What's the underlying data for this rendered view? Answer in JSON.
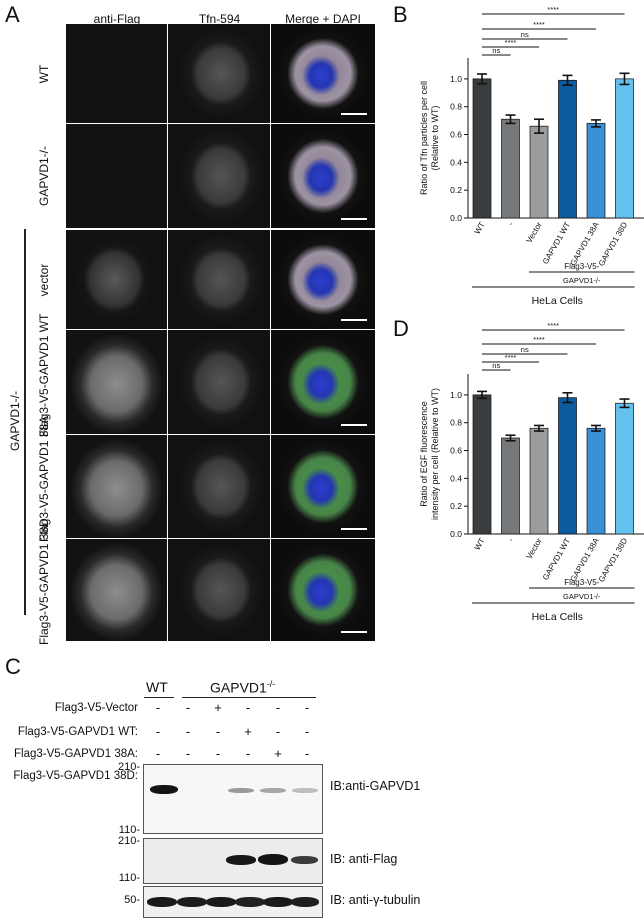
{
  "panel_A": {
    "letter": "A",
    "col_headers": [
      "anti-Flag",
      "Tfn-594",
      "Merge + DAPI"
    ],
    "row_labels": [
      "WT",
      "GAPVD1-/-",
      "vector",
      "Flag3-V5-GAPVD1 WT",
      "Flag3-V5-GAPVD1 38A",
      "Flag3-V5-GAPVD1 38D"
    ],
    "group_label": "GAPVD1-/-"
  },
  "panel_C": {
    "letter": "C",
    "header_wt": "WT",
    "header_ko": "GAPVD1-/-",
    "rows": [
      {
        "label": "Flag3-V5-Vector",
        "signs": [
          "-",
          "-",
          "+",
          "-",
          "-",
          "-"
        ]
      },
      {
        "label": "Flag3-V5-GAPVD1 WT:",
        "signs": [
          "-",
          "-",
          "-",
          "+",
          "-",
          "-"
        ]
      },
      {
        "label": "Flag3-V5-GAPVD1 38A:",
        "signs": [
          "-",
          "-",
          "-",
          "-",
          "+",
          "-"
        ]
      },
      {
        "label": "Flag3-V5-GAPVD1 38D:",
        "signs": [
          "-",
          "-",
          "-",
          "-",
          "-",
          "+"
        ]
      }
    ],
    "blots": [
      {
        "ib": "IB:anti-GAPVD1",
        "mw": [
          "210-",
          "110-"
        ]
      },
      {
        "ib": "IB: anti-Flag",
        "mw": [
          "210-",
          "110-"
        ]
      },
      {
        "ib": "IB: anti-γ-tubulin",
        "mw": [
          "50-"
        ]
      }
    ]
  },
  "chart_data": [
    {
      "panel": "B",
      "type": "bar",
      "categories": [
        "WT",
        "-",
        "Vector",
        "GAPVD1 WT",
        "GAPVD1 38A",
        "GAPVD1 38D"
      ],
      "values": [
        1.0,
        0.71,
        0.66,
        0.99,
        0.68,
        1.0
      ],
      "errors": [
        0.035,
        0.03,
        0.05,
        0.035,
        0.025,
        0.04
      ],
      "colors": [
        "#3a3d40",
        "#76797c",
        "#9a9c9e",
        "#0d5aa0",
        "#3b8fd6",
        "#64c1ee"
      ],
      "ylabel": "Ratio of Tfn particles per cell (Relative to WT)",
      "yticks": [
        "0.0",
        "0.2",
        "0.4",
        "0.6",
        "0.8",
        "1.0"
      ],
      "ylim": [
        0,
        1.15
      ],
      "significance": [
        "****",
        "****",
        "ns",
        "****",
        "ns"
      ],
      "group_label": "Flag3-V5-",
      "group_sublabel": "GAPVD1-/-",
      "footer": "HeLa Cells"
    },
    {
      "panel": "D",
      "type": "bar",
      "categories": [
        "WT",
        "-",
        "Vector",
        "GAPVD1 WT",
        "GAPVD1 38A",
        "GAPVD1 38D"
      ],
      "values": [
        1.0,
        0.69,
        0.76,
        0.98,
        0.76,
        0.94
      ],
      "errors": [
        0.025,
        0.02,
        0.02,
        0.035,
        0.02,
        0.03
      ],
      "colors": [
        "#3a3d40",
        "#76797c",
        "#9a9c9e",
        "#0d5aa0",
        "#3b8fd6",
        "#64c1ee"
      ],
      "ylabel": "Ratio of EGF fluorescence intensity per cell (Relative to WT)",
      "yticks": [
        "0.0",
        "0.2",
        "0.4",
        "0.6",
        "0.8",
        "1.0"
      ],
      "ylim": [
        0,
        1.15
      ],
      "significance": [
        "****",
        "****",
        "ns",
        "****",
        "ns"
      ],
      "group_label": "Flag3-V5-",
      "group_sublabel": "GAPVD1-/-",
      "footer": "HeLa Cells"
    }
  ]
}
